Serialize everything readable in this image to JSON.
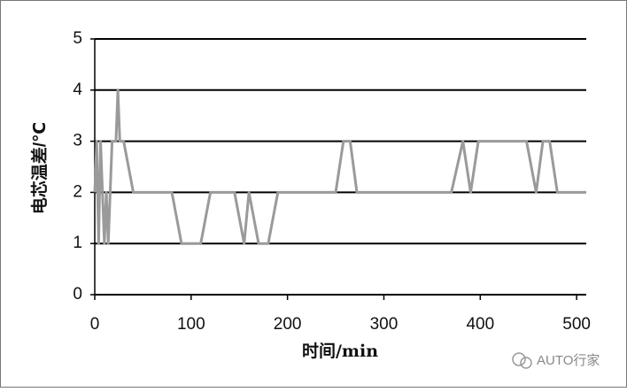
{
  "chart_data": {
    "type": "line",
    "x_label": "时间/min",
    "y_label": "电芯温差/℃",
    "watermark": "AUTO行家",
    "xlim": [
      0,
      510
    ],
    "xticks": [
      0,
      100,
      200,
      300,
      400,
      500
    ],
    "ylim": [
      0,
      5
    ],
    "yticks": [
      0,
      1,
      2,
      3,
      4,
      5
    ],
    "grid": true,
    "series": [
      {
        "color": "#9a9a9a",
        "x": [
          0,
          2,
          4,
          6,
          8,
          10,
          12,
          14,
          16,
          18,
          22,
          24,
          26,
          30,
          40,
          80,
          90,
          110,
          120,
          130,
          140,
          145,
          155,
          160,
          170,
          180,
          190,
          250,
          258,
          265,
          272,
          370,
          382,
          390,
          398,
          440,
          448,
          458,
          465,
          472,
          480,
          510
        ],
        "values": [
          2,
          3,
          1,
          3,
          2,
          1,
          2,
          1,
          2,
          3,
          3,
          4,
          3,
          3,
          2,
          2,
          1,
          1,
          2,
          2,
          2,
          2,
          1,
          2,
          1,
          1,
          2,
          2,
          3,
          3,
          2,
          2,
          3,
          2,
          3,
          3,
          3,
          2,
          3,
          3,
          2,
          2
        ]
      }
    ]
  }
}
